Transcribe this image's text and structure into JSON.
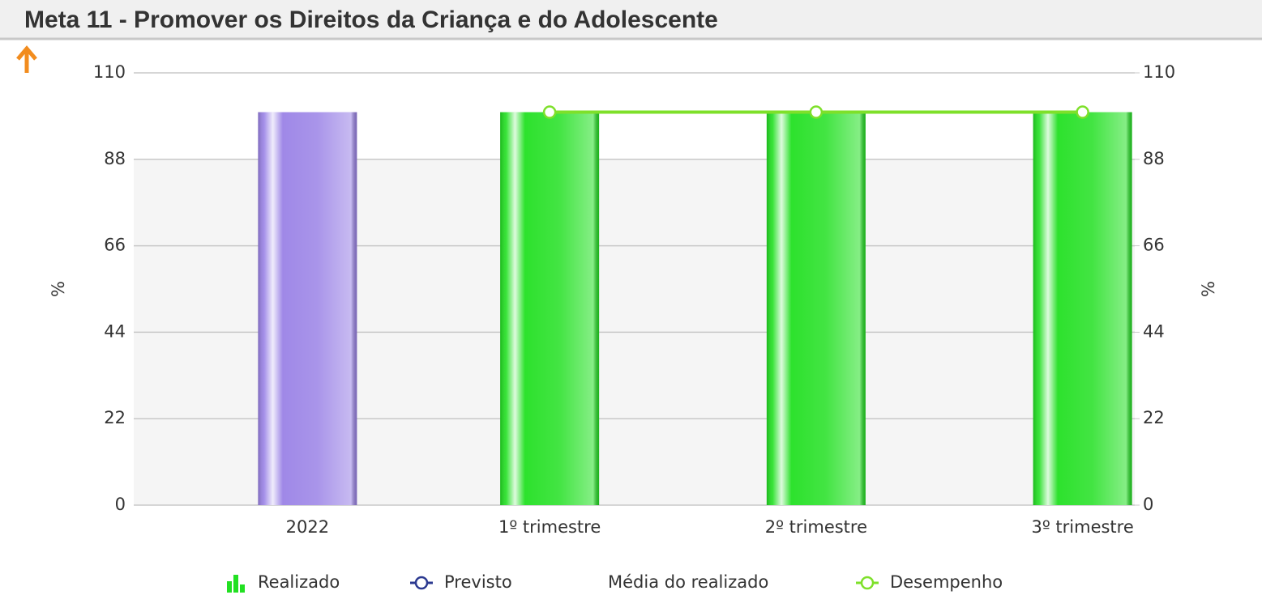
{
  "header": {
    "title": "Meta 11 - Promover os Direitos da Criança e do Adolescente"
  },
  "chart_data": {
    "type": "bar",
    "categories": [
      "2022",
      "1º trimestre",
      "2º trimestre",
      "3º trimestre"
    ],
    "y_label": "%",
    "y2_label": "%",
    "ylim": [
      0,
      110
    ],
    "yticks": [
      0,
      22,
      44,
      66,
      88,
      110
    ],
    "y2lim": [
      0,
      110
    ],
    "y2ticks": [
      0,
      22,
      44,
      66,
      88,
      110
    ],
    "grid": true,
    "series": [
      {
        "name": "Realizado",
        "type": "bar",
        "color": "#22e022",
        "colors": [
          "#9a82e6",
          "#22e022",
          "#22e022",
          "#22e022"
        ],
        "values": [
          100,
          100,
          100,
          100
        ]
      },
      {
        "name": "Previsto",
        "type": "line",
        "color": "#2b3990",
        "values": [
          null,
          null,
          null,
          null
        ]
      },
      {
        "name": "Média do realizado",
        "type": "line",
        "values": [
          null,
          null,
          null,
          null
        ]
      },
      {
        "name": "Desempenho",
        "type": "line",
        "color": "#7ee02a",
        "axis": "y2",
        "values": [
          null,
          100,
          100,
          100
        ]
      }
    ]
  }
}
